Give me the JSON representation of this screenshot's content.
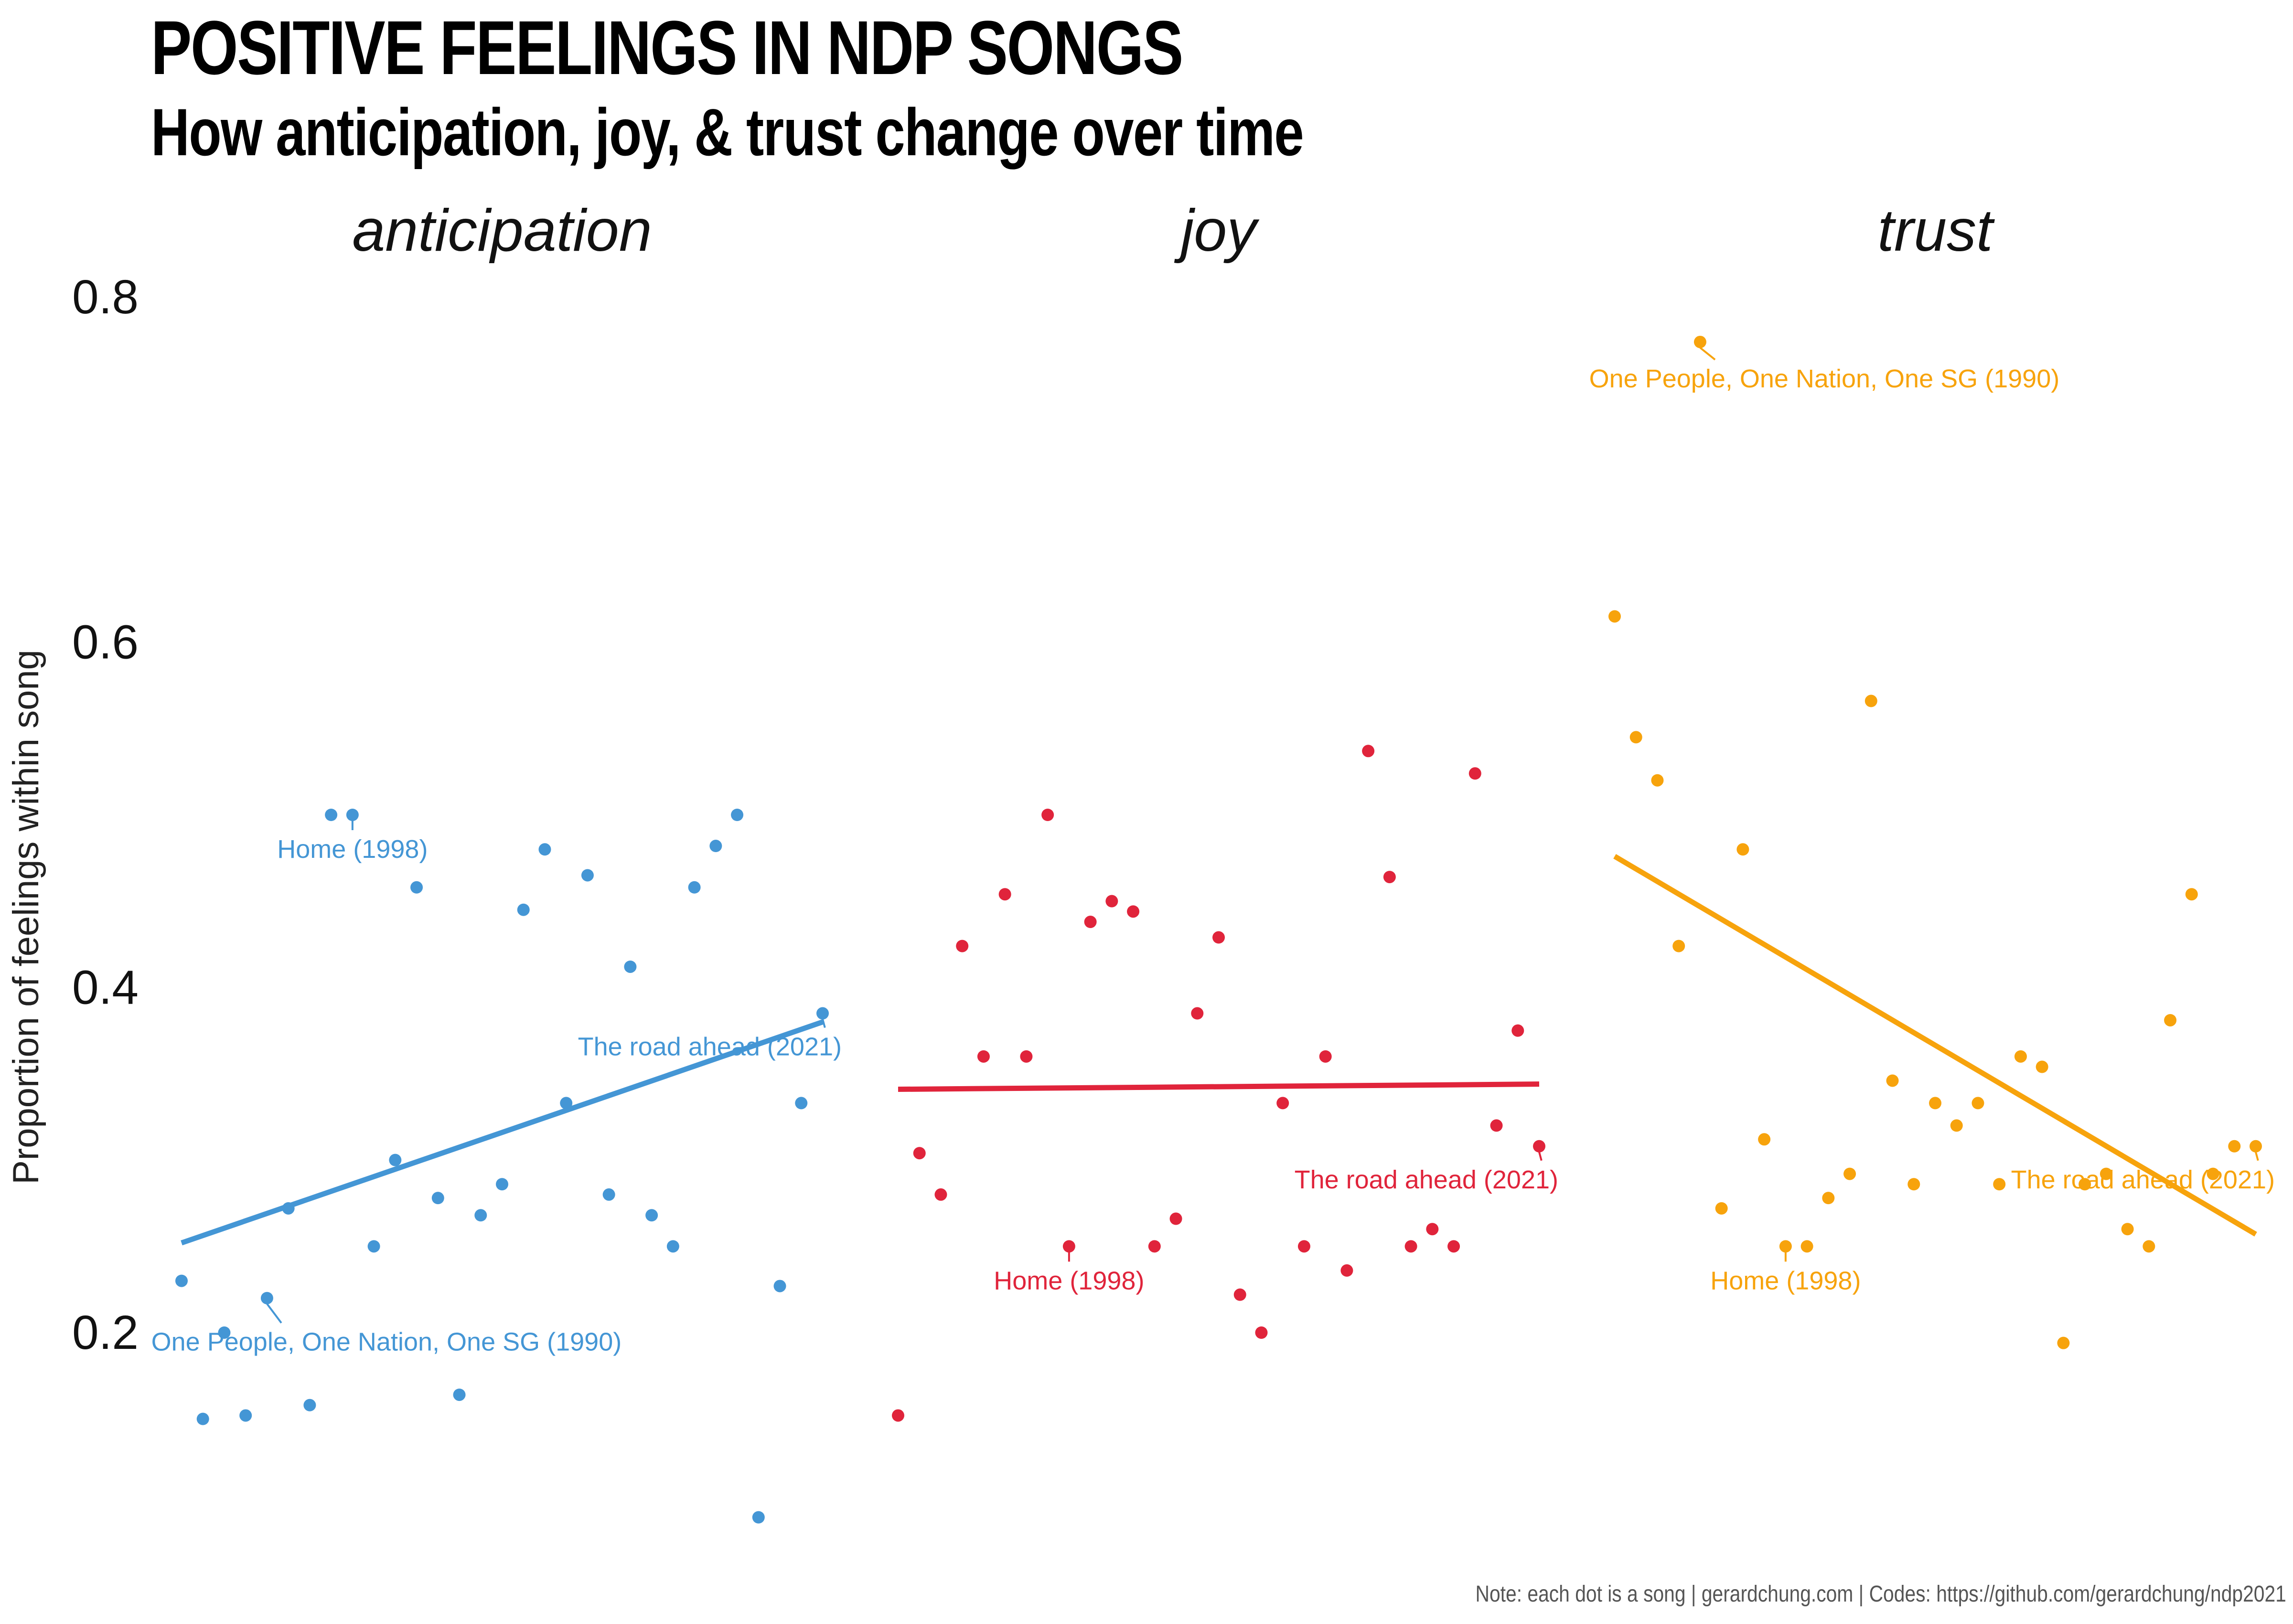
{
  "chart_data": {
    "type": "scatter",
    "title": "POSITIVE FEELINGS IN NDP SONGS",
    "subtitle": "How anticipation, joy, & trust change over time",
    "ylabel": "Proportion of feelings within song",
    "xlabel": "",
    "caption": "Note: each dot is a song | gerardchung.com | Codes: https://github.com/gerardchung/ndp2021",
    "ylim": [
      0.09,
      0.81
    ],
    "yticks": [
      0.2,
      0.4,
      0.6,
      0.8
    ],
    "ytick_labels": [
      "0.2",
      "0.4",
      "0.6",
      "0.8"
    ],
    "grid": false,
    "legend": "none",
    "x_index_range": [
      0,
      30
    ],
    "panels": [
      {
        "name": "anticipation",
        "color": "#4496d5",
        "points": [
          [
            0,
            0.23
          ],
          [
            1,
            0.15
          ],
          [
            2,
            0.2
          ],
          [
            3,
            0.152
          ],
          [
            4,
            0.22
          ],
          [
            5,
            0.272
          ],
          [
            6,
            0.158
          ],
          [
            7,
            0.5
          ],
          [
            8,
            0.5
          ],
          [
            9,
            0.25
          ],
          [
            10,
            0.3
          ],
          [
            11,
            0.458
          ],
          [
            12,
            0.278
          ],
          [
            13,
            0.164
          ],
          [
            14,
            0.268
          ],
          [
            15,
            0.286
          ],
          [
            16,
            0.445
          ],
          [
            17,
            0.48
          ],
          [
            18,
            0.333
          ],
          [
            19,
            0.465
          ],
          [
            20,
            0.28
          ],
          [
            21,
            0.412
          ],
          [
            22,
            0.268
          ],
          [
            23,
            0.25
          ],
          [
            24,
            0.458
          ],
          [
            25,
            0.482
          ],
          [
            26,
            0.5
          ],
          [
            27,
            0.093
          ],
          [
            28,
            0.227
          ],
          [
            29,
            0.333
          ],
          [
            30,
            0.385
          ]
        ],
        "trend": [
          [
            0,
            0.252
          ],
          [
            30,
            0.38
          ]
        ],
        "annotations": [
          {
            "label": "Home (1998)",
            "x": 8,
            "y": 0.5
          },
          {
            "label": "The road ahead (2021)",
            "x": 30,
            "y": 0.385
          },
          {
            "label": "One People, One Nation, One SG (1990)",
            "x": 4,
            "y": 0.22
          }
        ]
      },
      {
        "name": "joy",
        "color": "#e0243b",
        "points": [
          [
            0,
            0.152
          ],
          [
            1,
            0.304
          ],
          [
            2,
            0.28
          ],
          [
            3,
            0.424
          ],
          [
            4,
            0.36
          ],
          [
            5,
            0.454
          ],
          [
            6,
            0.36
          ],
          [
            7,
            0.5
          ],
          [
            8,
            0.25
          ],
          [
            9,
            0.438
          ],
          [
            10,
            0.45
          ],
          [
            11,
            0.444
          ],
          [
            12,
            0.25
          ],
          [
            13,
            0.266
          ],
          [
            14,
            0.385
          ],
          [
            15,
            0.429
          ],
          [
            16,
            0.222
          ],
          [
            17,
            0.2
          ],
          [
            18,
            0.333
          ],
          [
            19,
            0.25
          ],
          [
            20,
            0.36
          ],
          [
            21,
            0.236
          ],
          [
            22,
            0.537
          ],
          [
            23,
            0.464
          ],
          [
            24,
            0.25
          ],
          [
            25,
            0.26
          ],
          [
            26,
            0.25
          ],
          [
            27,
            0.524
          ],
          [
            28,
            0.32
          ],
          [
            29,
            0.375
          ],
          [
            30,
            0.308
          ]
        ],
        "trend": [
          [
            0,
            0.341
          ],
          [
            30,
            0.344
          ]
        ],
        "annotations": [
          {
            "label": "Home (1998)",
            "x": 8,
            "y": 0.25
          },
          {
            "label": "The road ahead (2021)",
            "x": 30,
            "y": 0.308
          }
        ]
      },
      {
        "name": "trust",
        "color": "#f7a30c",
        "points": [
          [
            0,
            0.615
          ],
          [
            1,
            0.545
          ],
          [
            2,
            0.52
          ],
          [
            3,
            0.424
          ],
          [
            4,
            0.774
          ],
          [
            5,
            0.272
          ],
          [
            6,
            0.48
          ],
          [
            7,
            0.312
          ],
          [
            8,
            0.25
          ],
          [
            9,
            0.25
          ],
          [
            10,
            0.278
          ],
          [
            11,
            0.292
          ],
          [
            12,
            0.566
          ],
          [
            13,
            0.346
          ],
          [
            14,
            0.286
          ],
          [
            15,
            0.333
          ],
          [
            16,
            0.32
          ],
          [
            17,
            0.333
          ],
          [
            18,
            0.286
          ],
          [
            19,
            0.36
          ],
          [
            20,
            0.354
          ],
          [
            21,
            0.194
          ],
          [
            22,
            0.286
          ],
          [
            23,
            0.292
          ],
          [
            24,
            0.26
          ],
          [
            25,
            0.25
          ],
          [
            26,
            0.381
          ],
          [
            27,
            0.454
          ],
          [
            28,
            0.292
          ],
          [
            29,
            0.308
          ],
          [
            30,
            0.308
          ]
        ],
        "trend": [
          [
            0,
            0.476
          ],
          [
            30,
            0.257
          ]
        ],
        "annotations": [
          {
            "label": "One People, One Nation, One SG (1990)",
            "x": 4,
            "y": 0.774
          },
          {
            "label": "Home (1998)",
            "x": 8,
            "y": 0.25
          },
          {
            "label": "The road ahead (2021)",
            "x": 30,
            "y": 0.308
          }
        ]
      }
    ]
  }
}
